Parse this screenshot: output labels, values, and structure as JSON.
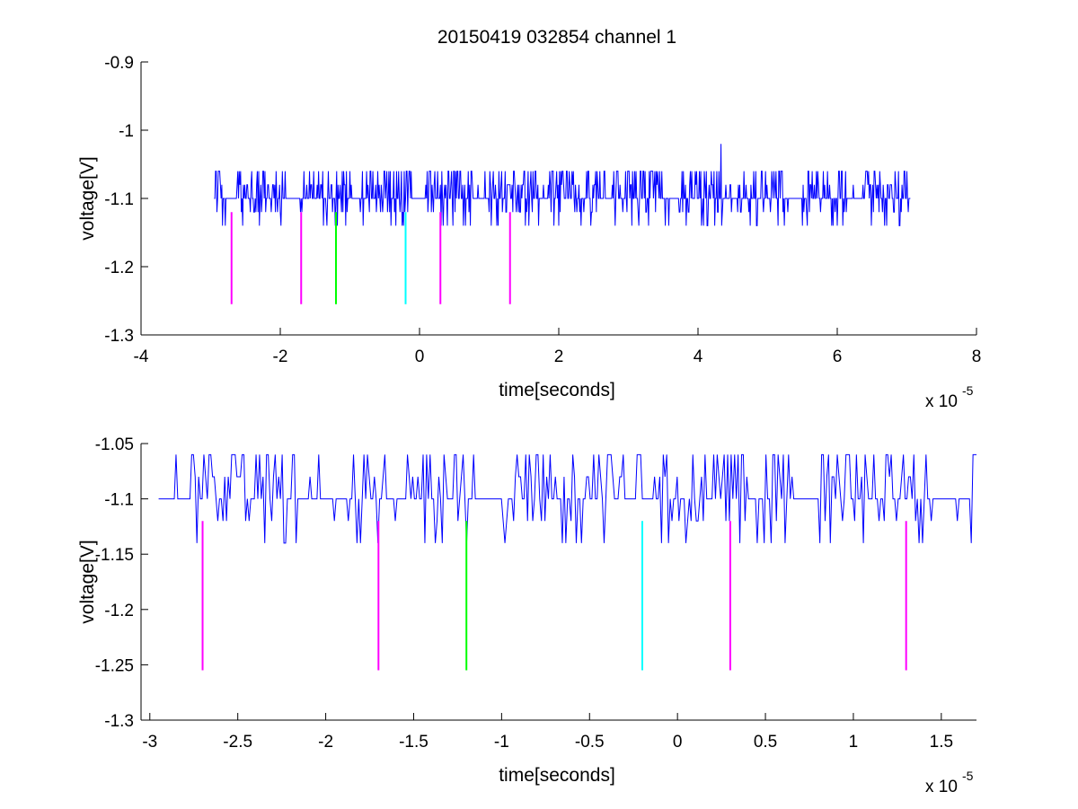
{
  "figure": {
    "title": "20150419 032854 channel 1",
    "colors": {
      "signal": "#0000ff",
      "magenta": "#ff00ff",
      "green": "#00ff00",
      "cyan": "#00ffff",
      "axes": "#000000",
      "background": "#ffffff"
    }
  },
  "chart_data": [
    {
      "type": "line",
      "title": "20150419 032854 channel 1",
      "xlabel": "time[seconds]",
      "ylabel": "voltage[V]",
      "x_exponent_label": "x 10",
      "x_exponent": "-5",
      "xlim": [
        -4,
        8
      ],
      "ylim": [
        -1.3,
        -0.9
      ],
      "xticks": [
        -4,
        -2,
        0,
        2,
        4,
        6,
        8
      ],
      "yticks": [
        -1.3,
        -1.2,
        -1.1,
        -1.0,
        -0.9
      ],
      "xtick_labels": [
        "-4",
        "-2",
        "0",
        "2",
        "4",
        "6",
        "8"
      ],
      "ytick_labels": [
        "-1.3",
        "-1.2",
        "-1.1",
        "-1",
        "-0.9"
      ],
      "grid": false,
      "signal": {
        "x_range": [
          -2.95,
          7.05
        ],
        "levels": [
          -1.14,
          -1.12,
          -1.1,
          -1.08,
          -1.06
        ],
        "baseline": -1.1,
        "spike": {
          "x": 4.33,
          "y": -1.02
        }
      },
      "markers": [
        {
          "x": -2.7,
          "y_top": -1.12,
          "y_bottom": -1.255,
          "color": "magenta"
        },
        {
          "x": -1.7,
          "y_top": -1.12,
          "y_bottom": -1.255,
          "color": "magenta"
        },
        {
          "x": -1.2,
          "y_top": -1.12,
          "y_bottom": -1.255,
          "color": "green"
        },
        {
          "x": -0.2,
          "y_top": -1.12,
          "y_bottom": -1.255,
          "color": "cyan"
        },
        {
          "x": 0.3,
          "y_top": -1.12,
          "y_bottom": -1.255,
          "color": "magenta"
        },
        {
          "x": 1.3,
          "y_top": -1.12,
          "y_bottom": -1.255,
          "color": "magenta"
        }
      ]
    },
    {
      "type": "line",
      "title": "",
      "xlabel": "time[seconds]",
      "ylabel": "voltage[V]",
      "x_exponent_label": "x 10",
      "x_exponent": "-5",
      "xlim": [
        -3.05,
        1.7
      ],
      "ylim": [
        -1.3,
        -1.05
      ],
      "xticks": [
        -3,
        -2.5,
        -2,
        -1.5,
        -1,
        -0.5,
        0,
        0.5,
        1,
        1.5
      ],
      "yticks": [
        -1.3,
        -1.25,
        -1.2,
        -1.15,
        -1.1,
        -1.05
      ],
      "xtick_labels": [
        "-3",
        "-2.5",
        "-2",
        "-1.5",
        "-1",
        "-0.5",
        "0",
        "0.5",
        "1",
        "1.5"
      ],
      "ytick_labels": [
        "-1.3",
        "-1.25",
        "-1.2",
        "-1.15",
        "-1.1",
        "-1.05"
      ],
      "grid": false,
      "signal": {
        "x_range": [
          -2.95,
          1.7
        ],
        "levels": [
          -1.14,
          -1.12,
          -1.1,
          -1.08,
          -1.06
        ],
        "baseline": -1.1
      },
      "markers": [
        {
          "x": -2.7,
          "y_top": -1.12,
          "y_bottom": -1.255,
          "color": "magenta"
        },
        {
          "x": -1.7,
          "y_top": -1.12,
          "y_bottom": -1.255,
          "color": "magenta"
        },
        {
          "x": -1.2,
          "y_top": -1.12,
          "y_bottom": -1.255,
          "color": "green"
        },
        {
          "x": -0.2,
          "y_top": -1.12,
          "y_bottom": -1.255,
          "color": "cyan"
        },
        {
          "x": 0.3,
          "y_top": -1.12,
          "y_bottom": -1.255,
          "color": "magenta"
        },
        {
          "x": 1.3,
          "y_top": -1.12,
          "y_bottom": -1.255,
          "color": "magenta"
        }
      ]
    }
  ]
}
